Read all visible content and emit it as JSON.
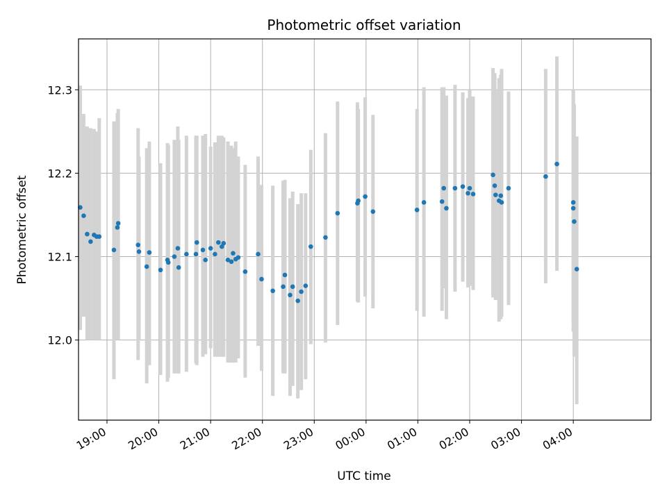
{
  "chart_data": {
    "type": "scatter",
    "title": "Photometric offset variation",
    "xlabel": "UTC time",
    "ylabel": "Photometric offset",
    "x_tick_labels": [
      "19:00",
      "20:00",
      "21:00",
      "22:00",
      "23:00",
      "00:00",
      "01:00",
      "02:00",
      "03:00",
      "04:00"
    ],
    "x_ticks_hours": [
      19,
      20,
      21,
      22,
      23,
      24,
      25,
      26,
      27,
      28
    ],
    "y_ticks": [
      12.0,
      12.1,
      12.2,
      12.3
    ],
    "y_tick_labels": [
      "12.0",
      "12.1",
      "12.2",
      "12.3"
    ],
    "xlim_hours": [
      18.45,
      29.5
    ],
    "ylim": [
      11.904,
      12.361
    ],
    "grid": true,
    "colors": {
      "point": "#1f77b4",
      "errorbar": "#d3d3d3",
      "grid": "#b0b0b0"
    },
    "series": [
      {
        "x": [
          "18:29",
          "18:33",
          "18:37",
          "18:41",
          "18:45",
          "18:48",
          "18:51",
          "19:08",
          "19:12",
          "19:13",
          "19:36",
          "19:37",
          "19:46",
          "19:49",
          "20:02",
          "20:10",
          "20:11",
          "20:18",
          "20:22",
          "20:23",
          "20:32",
          "20:43",
          "20:44",
          "20:51",
          "20:54",
          "21:00",
          "21:05",
          "21:09",
          "21:13",
          "21:15",
          "21:20",
          "21:24",
          "21:26",
          "21:29",
          "21:32",
          "21:40",
          "21:55",
          "21:59",
          "22:12",
          "22:24",
          "22:26",
          "22:32",
          "22:35",
          "22:41",
          "22:45",
          "22:50",
          "22:56",
          "23:13",
          "23:27",
          "23:50",
          "23:51",
          "23:59",
          "24:08",
          "24:59",
          "25:07",
          "25:28",
          "25:30",
          "25:33",
          "25:43",
          "25:52",
          "25:58",
          "26:00",
          "26:04",
          "26:27",
          "26:29",
          "26:30",
          "26:34",
          "26:36",
          "26:37",
          "26:45",
          "27:28",
          "27:41",
          "28:00",
          "28:00",
          "28:01",
          "28:04"
        ],
        "y": [
          12.159,
          12.149,
          12.127,
          12.118,
          12.126,
          12.124,
          12.124,
          12.108,
          12.135,
          12.14,
          12.114,
          12.106,
          12.088,
          12.105,
          12.084,
          12.096,
          12.093,
          12.1,
          12.11,
          12.087,
          12.103,
          12.103,
          12.117,
          12.108,
          12.096,
          12.11,
          12.103,
          12.117,
          12.112,
          12.116,
          12.096,
          12.094,
          12.104,
          12.097,
          12.099,
          12.082,
          12.103,
          12.073,
          12.059,
          12.064,
          12.078,
          12.054,
          12.064,
          12.047,
          12.058,
          12.065,
          12.112,
          12.123,
          12.152,
          12.164,
          12.167,
          12.172,
          12.154,
          12.156,
          12.165,
          12.166,
          12.182,
          12.158,
          12.182,
          12.184,
          12.176,
          12.182,
          12.175,
          12.198,
          12.185,
          12.174,
          12.167,
          12.173,
          12.165,
          12.182,
          12.196,
          12.211,
          12.165,
          12.158,
          12.142,
          12.085
        ],
        "err_low": [
          12.012,
          12.028,
          12.0,
          12.0,
          12.0,
          12.0,
          12.0,
          11.953,
          12.0,
          12.0,
          11.976,
          12.0,
          11.948,
          11.97,
          11.958,
          11.95,
          11.955,
          11.96,
          11.96,
          11.96,
          11.962,
          11.972,
          11.97,
          11.98,
          11.983,
          11.99,
          11.98,
          11.98,
          11.98,
          11.98,
          11.973,
          11.973,
          11.973,
          11.973,
          11.978,
          11.955,
          11.993,
          11.963,
          11.933,
          11.96,
          11.96,
          11.933,
          11.945,
          11.93,
          11.94,
          11.953,
          11.995,
          11.997,
          12.018,
          12.046,
          12.045,
          12.052,
          12.038,
          12.035,
          12.028,
          12.035,
          12.062,
          12.025,
          12.058,
          12.07,
          12.063,
          12.065,
          12.06,
          12.051,
          12.051,
          12.048,
          12.022,
          12.025,
          12.028,
          12.042,
          12.068,
          12.083,
          12.02,
          12.01,
          11.98,
          11.923
        ],
        "err_high": [
          12.305,
          12.271,
          12.256,
          12.254,
          12.253,
          12.25,
          12.266,
          12.262,
          12.272,
          12.277,
          12.254,
          12.22,
          12.23,
          12.238,
          12.212,
          12.236,
          12.234,
          12.24,
          12.256,
          12.24,
          12.245,
          12.245,
          12.245,
          12.245,
          12.247,
          12.232,
          12.237,
          12.245,
          12.245,
          12.243,
          12.238,
          12.233,
          12.23,
          12.238,
          12.22,
          12.21,
          12.22,
          12.186,
          12.185,
          12.191,
          12.192,
          12.17,
          12.178,
          12.163,
          12.176,
          12.176,
          12.228,
          12.248,
          12.286,
          12.285,
          12.277,
          12.291,
          12.27,
          12.277,
          12.303,
          12.303,
          12.303,
          12.293,
          12.306,
          12.297,
          12.29,
          12.3,
          12.292,
          12.326,
          12.32,
          12.3,
          12.314,
          12.318,
          12.325,
          12.298,
          12.325,
          12.34,
          12.3,
          12.3,
          12.283,
          12.244
        ]
      }
    ]
  }
}
